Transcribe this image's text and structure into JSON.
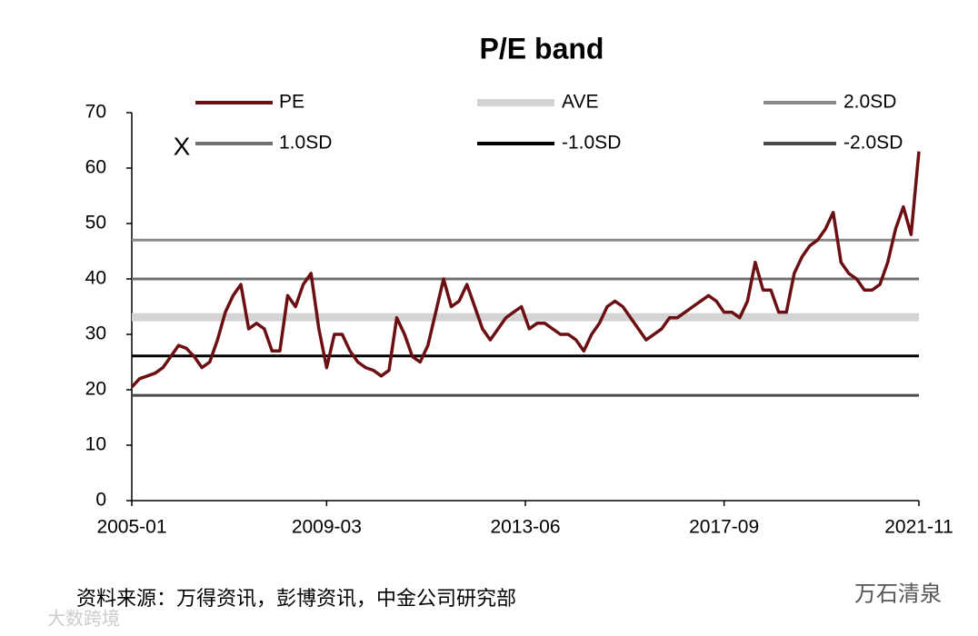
{
  "chart_data": {
    "type": "line",
    "title": "P/E band",
    "x": [
      "2005-01",
      "2005-03",
      "2005-05",
      "2005-07",
      "2005-09",
      "2005-11",
      "2006-01",
      "2006-03",
      "2006-05",
      "2006-07",
      "2006-09",
      "2006-11",
      "2007-01",
      "2007-03",
      "2007-05",
      "2007-07",
      "2007-09",
      "2007-11",
      "2008-01",
      "2008-03",
      "2008-05",
      "2008-07",
      "2008-09",
      "2008-11",
      "2009-01",
      "2009-03",
      "2009-05",
      "2009-07",
      "2009-09",
      "2009-11",
      "2010-01",
      "2010-03",
      "2010-05",
      "2010-07",
      "2010-09",
      "2010-11",
      "2011-01",
      "2011-03",
      "2011-05",
      "2011-07",
      "2011-09",
      "2011-11",
      "2012-01",
      "2012-03",
      "2012-05",
      "2012-07",
      "2012-09",
      "2012-11",
      "2013-01",
      "2013-03",
      "2013-05",
      "2013-07",
      "2013-09",
      "2013-11",
      "2014-01",
      "2014-03",
      "2014-05",
      "2014-07",
      "2014-09",
      "2014-11",
      "2015-01",
      "2015-03",
      "2015-05",
      "2015-07",
      "2015-09",
      "2015-11",
      "2016-01",
      "2016-03",
      "2016-05",
      "2016-07",
      "2016-09",
      "2016-11",
      "2017-01",
      "2017-03",
      "2017-05",
      "2017-07",
      "2017-09",
      "2017-11",
      "2018-01",
      "2018-03",
      "2018-05",
      "2018-07",
      "2018-09",
      "2018-11",
      "2019-01",
      "2019-03",
      "2019-05",
      "2019-07",
      "2019-09",
      "2019-11",
      "2020-01",
      "2020-03",
      "2020-05",
      "2020-07",
      "2020-09",
      "2020-11",
      "2021-01",
      "2021-03",
      "2021-05",
      "2021-07",
      "2021-09",
      "2021-11"
    ],
    "series": [
      {
        "name": "PE",
        "color": "#6b0f12",
        "values": [
          20.5,
          22,
          22.5,
          23,
          24,
          26,
          28,
          27.5,
          26,
          24,
          25,
          29,
          34,
          37,
          39,
          31,
          32,
          31,
          27,
          27,
          37,
          35,
          39,
          41,
          31,
          24,
          30,
          30,
          27,
          25,
          24,
          23.5,
          22.5,
          23.5,
          33,
          30,
          26,
          25,
          28,
          34,
          40,
          35,
          36,
          39,
          35,
          31,
          29,
          31,
          33,
          34,
          35,
          31,
          32,
          32,
          31,
          30,
          30,
          29,
          27,
          30,
          32,
          35,
          36,
          35,
          33,
          31,
          29,
          30,
          31,
          33,
          33,
          34,
          35,
          36,
          37,
          36,
          34,
          34,
          33,
          36,
          43,
          38,
          38,
          34,
          34,
          41,
          44,
          46,
          47,
          49,
          52,
          43,
          41,
          40,
          38,
          38,
          39,
          43,
          49,
          53,
          48,
          63
        ]
      }
    ],
    "reference_lines": [
      {
        "name": "AVE",
        "color": "#d4d4d4",
        "value": 33.1
      },
      {
        "name": "2.0SD",
        "color": "#8a8a8a",
        "value": 47
      },
      {
        "name": "1.0SD",
        "color": "#707070",
        "value": 40
      },
      {
        "name": "-1.0SD",
        "color": "#000000",
        "value": 26.1
      },
      {
        "name": "-2.0SD",
        "color": "#4a4a4a",
        "value": 19
      }
    ],
    "xlim": [
      "2005-01",
      "2021-11"
    ],
    "xticks": [
      "2005-01",
      "2009-03",
      "2013-06",
      "2017-09",
      "2021-11"
    ],
    "ylim": [
      0,
      70
    ],
    "yticks": [
      0,
      10,
      20,
      30,
      40,
      50,
      60,
      70
    ],
    "annotation": "X",
    "source": "资料来源：万得资讯，彭博资讯，中金公司研究部",
    "watermarks": [
      "万石清泉",
      "大数跨境"
    ]
  }
}
